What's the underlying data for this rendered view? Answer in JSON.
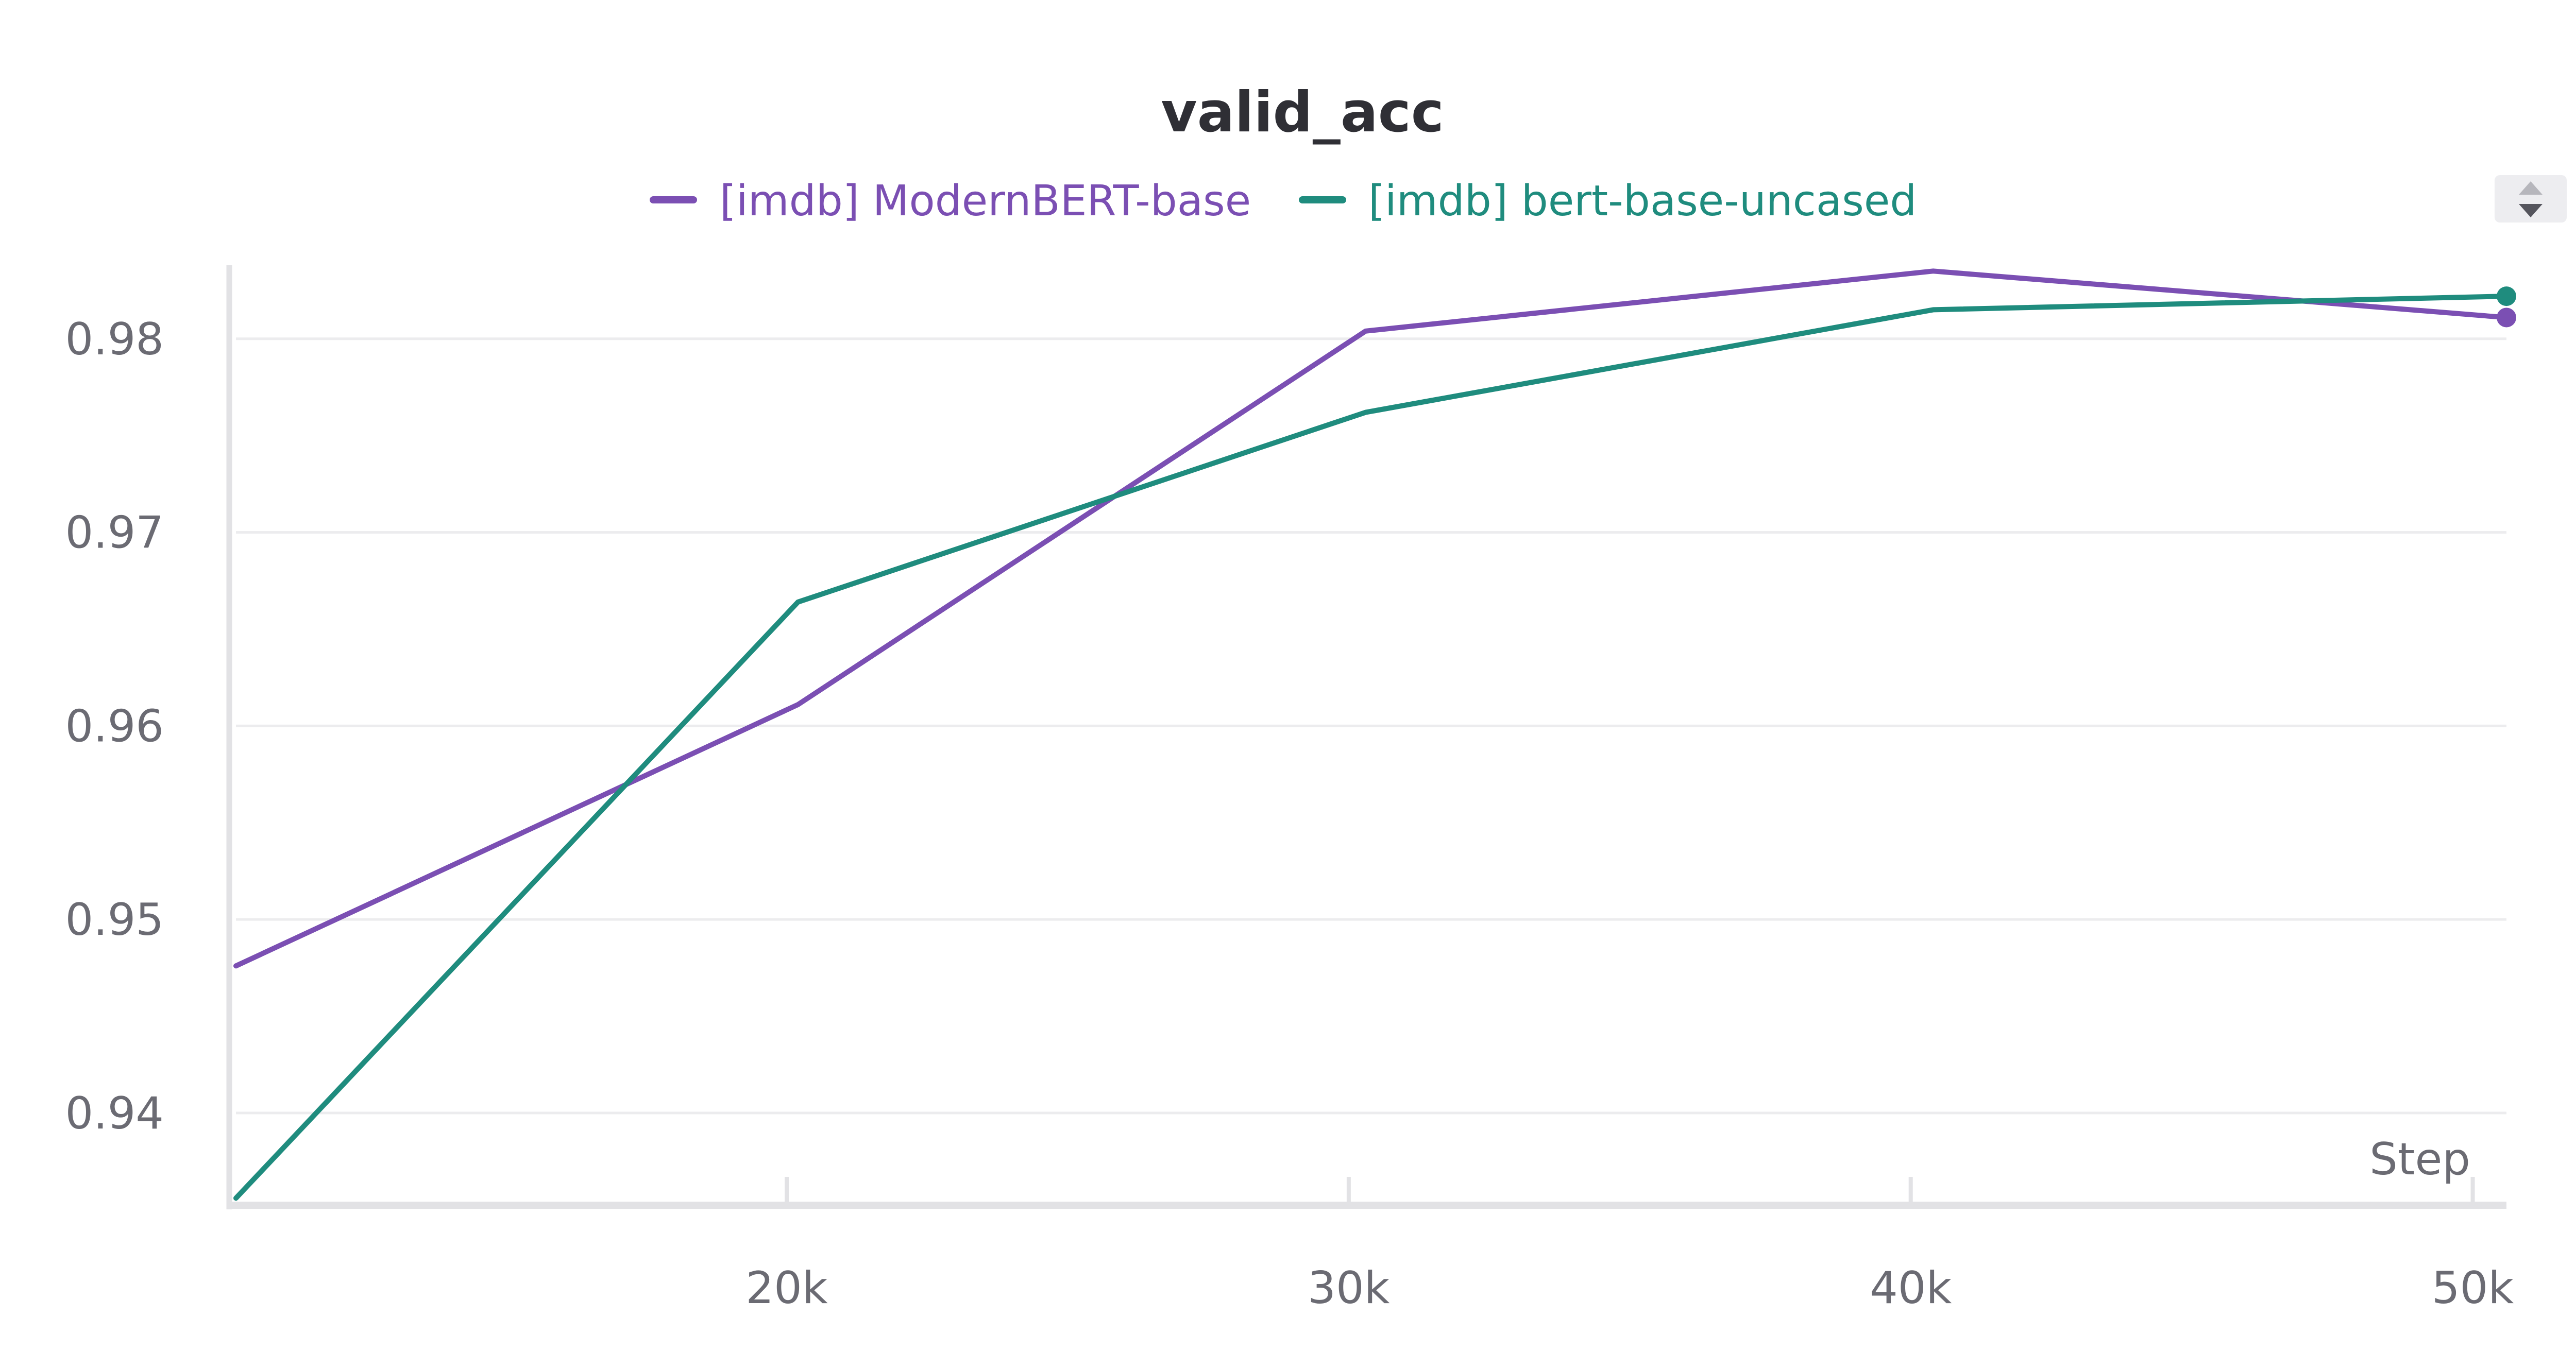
{
  "chart_data": {
    "type": "line",
    "title": "valid_acc",
    "xlabel": "Step",
    "ylabel": "",
    "xlim": [
      10200,
      50600
    ],
    "ylim": [
      0.9355,
      0.9838
    ],
    "x_ticks": [
      20000,
      30000,
      40000,
      50000
    ],
    "x_tick_labels": [
      "20k",
      "30k",
      "40k",
      "50k"
    ],
    "y_ticks": [
      0.94,
      0.95,
      0.96,
      0.97,
      0.98
    ],
    "y_tick_labels": [
      "0.94",
      "0.95",
      "0.96",
      "0.97",
      "0.98"
    ],
    "grid": true,
    "legend_position": "top-center",
    "series": [
      {
        "name": "[imdb] ModernBERT-base",
        "color": "#7b4fb3",
        "x": [
          10200,
          20200,
          30300,
          40400,
          50600
        ],
        "y": [
          0.9476,
          0.9611,
          0.9804,
          0.9835,
          0.9811
        ]
      },
      {
        "name": "[imdb] bert-base-uncased",
        "color": "#1f8c7e",
        "x": [
          10200,
          20200,
          30300,
          40400,
          50600
        ],
        "y": [
          0.9356,
          0.9664,
          0.9762,
          0.9815,
          0.9822
        ]
      }
    ]
  },
  "colors": {
    "axis": "#e2e2e5",
    "grid": "#ececee",
    "tick_text": "#6b6b73",
    "title": "#2f2f35",
    "sort_button_bg": "#ededf0",
    "sort_button_icon": "#6b6b73"
  },
  "icons": {
    "sort": "sort-up-down-icon"
  }
}
